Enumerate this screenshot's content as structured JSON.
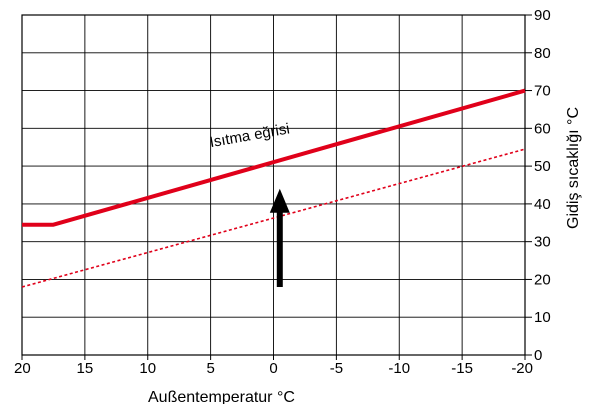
{
  "chart_data": {
    "type": "line",
    "title": "",
    "xlabel": "Außentemperatur °C",
    "ylabel": "Gidiş sıcaklığı °C",
    "xlim": [
      20,
      -20
    ],
    "ylim": [
      0,
      90
    ],
    "x_ticks": [
      "20",
      "15",
      "10",
      "5",
      "0",
      "-5",
      "-10",
      "-15",
      "-20"
    ],
    "y_ticks": [
      "0",
      "10",
      "20",
      "30",
      "40",
      "50",
      "60",
      "70",
      "80",
      "90"
    ],
    "grid": true,
    "y_axis_side": "right",
    "series": [
      {
        "name": "Isıtma eğrisi",
        "style": "solid",
        "color": "#e0001a",
        "x": [
          20,
          17.5,
          -20
        ],
        "y": [
          34.5,
          34.5,
          70
        ]
      },
      {
        "style": "dotted",
        "color": "#e0001a",
        "x": [
          20,
          -20
        ],
        "y": [
          18,
          54.5
        ]
      }
    ],
    "annotations": [
      {
        "type": "label",
        "text": "Isıtma eğrisi",
        "x": 5,
        "y": 55
      },
      {
        "type": "arrow",
        "direction": "up",
        "x": -0.5,
        "y_from": 18,
        "y_to": 44
      }
    ]
  }
}
